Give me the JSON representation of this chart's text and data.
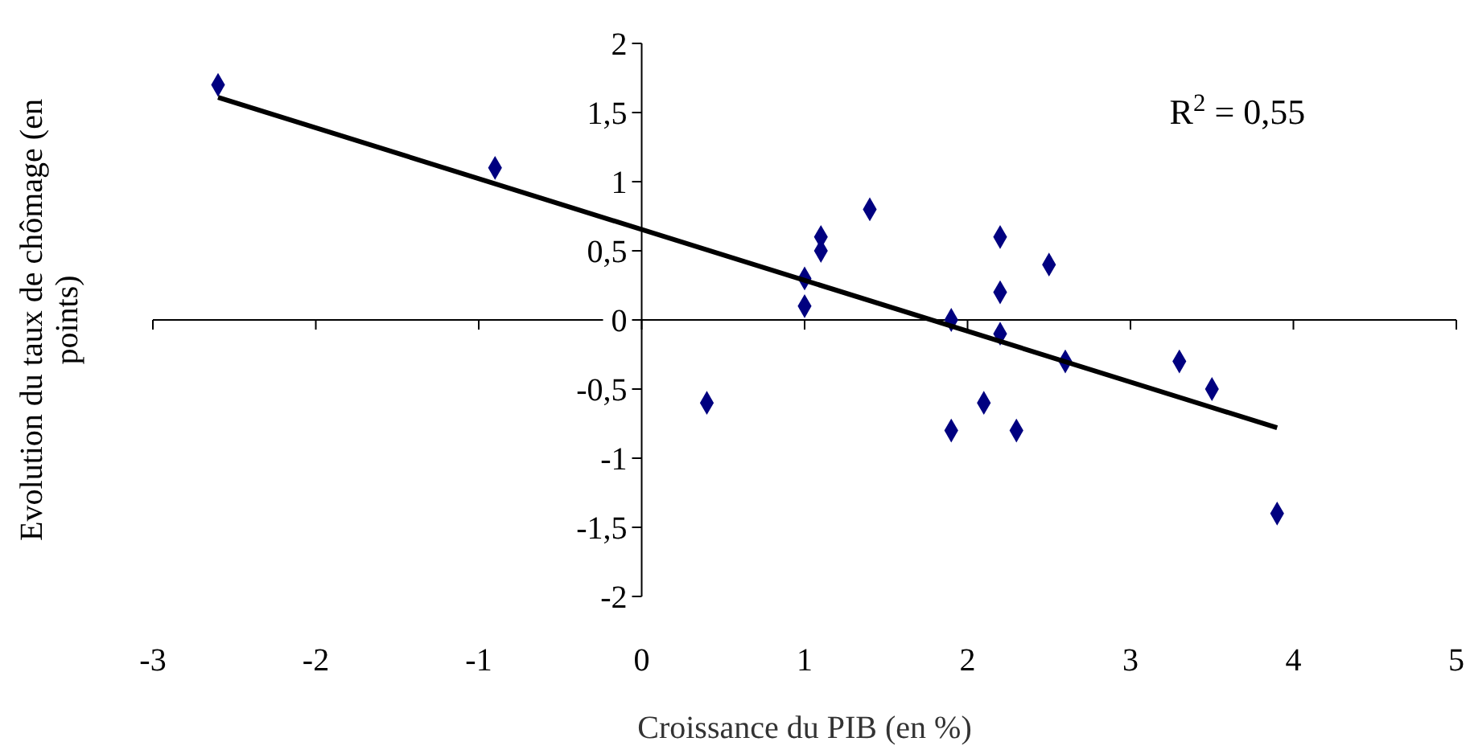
{
  "chart_data": {
    "type": "scatter",
    "xlabel": "Croissance du PIB (en %)",
    "ylabel": "Evolution du taux de chômage (en points)",
    "xlim": [
      -3,
      5
    ],
    "xticks": [
      -3,
      -2,
      -1,
      0,
      1,
      2,
      3,
      4,
      5
    ],
    "ylim": [
      -2,
      2
    ],
    "yticks": [
      {
        "value": -2,
        "label": "-2"
      },
      {
        "value": -1.5,
        "label": "-1,5"
      },
      {
        "value": -1,
        "label": "-1"
      },
      {
        "value": -0.5,
        "label": "-0,5"
      },
      {
        "value": 0,
        "label": "0"
      },
      {
        "value": 0.5,
        "label": "0,5"
      },
      {
        "value": 1,
        "label": "1"
      },
      {
        "value": 1.5,
        "label": "1,5"
      },
      {
        "value": 2,
        "label": "2"
      }
    ],
    "marker": "diamond",
    "annotations": [
      "R$^{2}$ = 0,55"
    ],
    "series": [
      {
        "color": "#000080",
        "x": [
          -2.6,
          -0.9,
          0.4,
          1,
          1,
          1.1,
          1.1,
          1.4,
          1.9,
          1.9,
          2.1,
          2.2,
          2.2,
          2.2,
          2.3,
          2.5,
          2.6,
          3.3,
          3.5,
          3.9
        ],
        "values": [
          1.7,
          1.1,
          -0.6,
          0.3,
          0.1,
          0.6,
          0.5,
          0.8,
          0,
          -0.8,
          -0.6,
          0.6,
          0.2,
          -0.1,
          -0.8,
          0.4,
          -0.3,
          -0.3,
          -0.5,
          -1.4
        ]
      },
      {
        "type": "line",
        "color": "#000000",
        "line_style": "solid",
        "marker": "none",
        "x": [
          -2.6,
          3.9
        ],
        "values": [
          1.61,
          -0.78
        ]
      }
    ]
  }
}
